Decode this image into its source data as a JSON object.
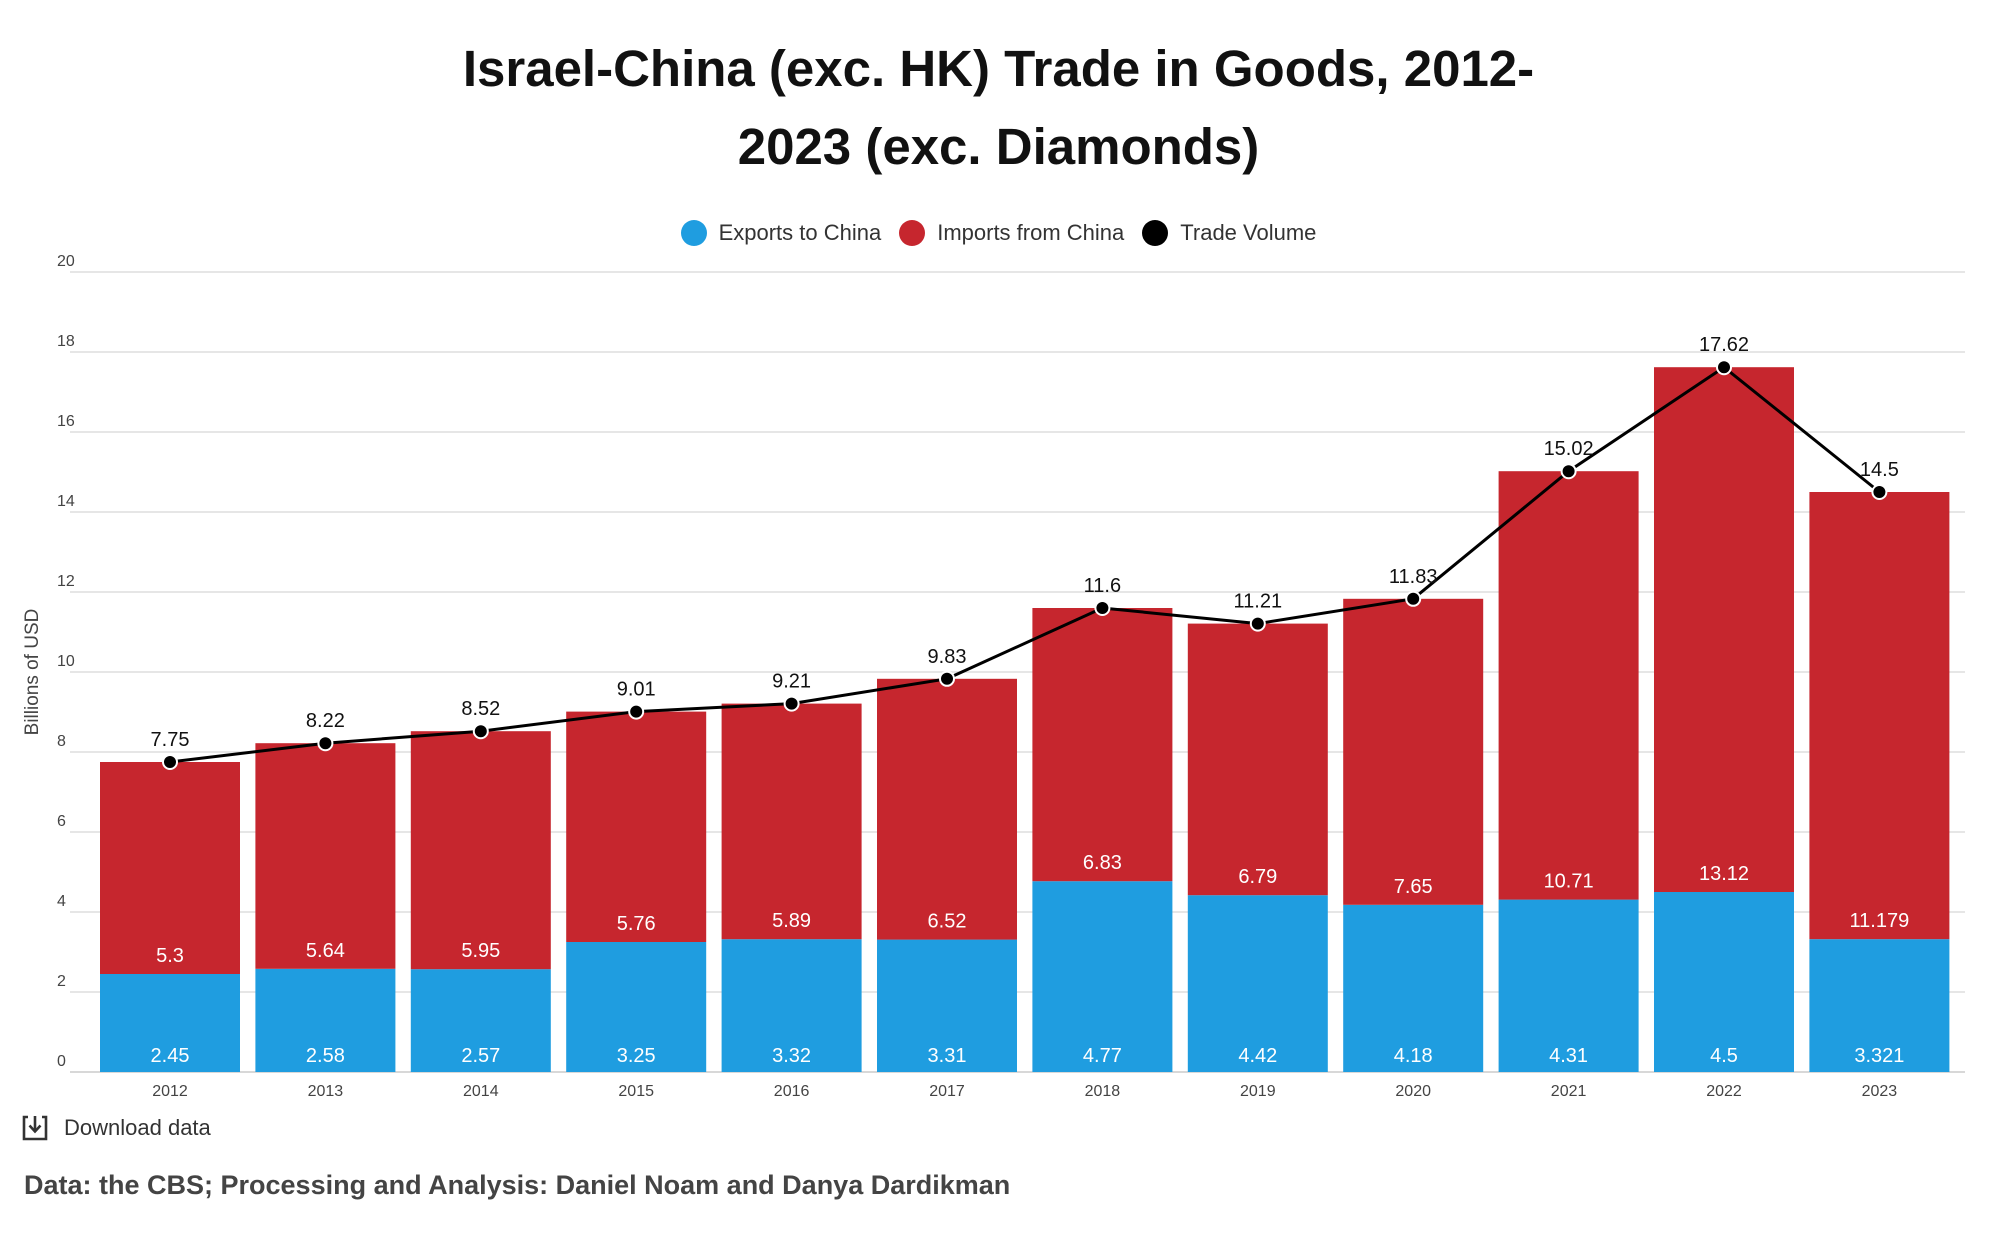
{
  "title_lines": [
    "Israel-China (exc. HK) Trade in Goods, 2012-",
    "2023 (exc. Diamonds)"
  ],
  "download_label": "Download data",
  "source": "Data: the CBS; Processing and Analysis: Daniel Noam and Danya Dardikman",
  "chart_data": {
    "type": "bar",
    "stacked": true,
    "title": "Israel-China (exc. HK) Trade in Goods, 2012-2023 (exc. Diamonds)",
    "ylabel": "Billions of USD",
    "ylim": [
      0,
      20
    ],
    "yticks": [
      0,
      2,
      4,
      6,
      8,
      10,
      12,
      14,
      16,
      18,
      20
    ],
    "grid": true,
    "legend_position": "top-center",
    "categories": [
      "2012",
      "2013",
      "2014",
      "2015",
      "2016",
      "2017",
      "2018",
      "2019",
      "2020",
      "2021",
      "2022",
      "2023"
    ],
    "series": [
      {
        "name": "Exports to China",
        "type": "bar",
        "color": "#1f9de0",
        "values": [
          2.45,
          2.58,
          2.57,
          3.25,
          3.32,
          3.31,
          4.77,
          4.42,
          4.18,
          4.31,
          4.5,
          3.321
        ]
      },
      {
        "name": "Imports from China",
        "type": "bar",
        "color": "#c6262e",
        "values": [
          5.3,
          5.64,
          5.95,
          5.76,
          5.89,
          6.52,
          6.83,
          6.79,
          7.65,
          10.71,
          13.12,
          11.179
        ]
      },
      {
        "name": "Trade Volume",
        "type": "line",
        "color": "#000000",
        "values": [
          7.75,
          8.22,
          8.52,
          9.01,
          9.21,
          9.83,
          11.6,
          11.21,
          11.83,
          15.02,
          17.62,
          14.5
        ]
      }
    ]
  }
}
